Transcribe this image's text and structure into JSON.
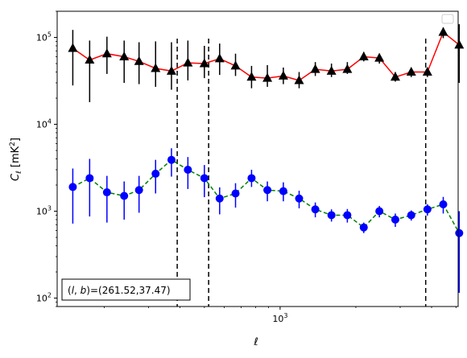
{
  "chart_data": {
    "type": "scatter",
    "xlabel": "ℓ",
    "ylabel": "C_ℓ  [mK²]",
    "xscale": "log",
    "yscale": "log",
    "xlim": [
      130,
      5100
    ],
    "ylim": [
      80,
      200000
    ],
    "x_ticks": [
      {
        "value": 1000,
        "label": "10",
        "sup": "3"
      }
    ],
    "y_ticks": [
      {
        "value": 100,
        "label": "10",
        "sup": "2"
      },
      {
        "value": 1000,
        "label": "10",
        "sup": "3"
      },
      {
        "value": 10000,
        "label": "10",
        "sup": "4"
      },
      {
        "value": 100000,
        "label": "10",
        "sup": "5"
      }
    ],
    "grid": false,
    "legend": "top-right (empty)",
    "vlines": [
      390,
      520,
      3790
    ],
    "annotation": {
      "prefix": "(l, b)",
      "value": "=(261.52,37.47)"
    },
    "colors": {
      "series1_line": "#ff0000",
      "series1_marker": "#000000",
      "series2_line": "#008000",
      "series2_marker": "#0000ff"
    },
    "series": [
      {
        "marker": "triangle",
        "line": "solid",
        "x": [
          150,
          175,
          205,
          240,
          275,
          320,
          370,
          430,
          500,
          575,
          665,
          770,
          890,
          1030,
          1190,
          1380,
          1600,
          1850,
          2150,
          2480,
          2870,
          3320,
          3850,
          4450,
          5150
        ],
        "y": [
          75000,
          55000,
          65000,
          60000,
          53000,
          44000,
          41000,
          51000,
          50000,
          57000,
          47000,
          35000,
          34000,
          36000,
          32000,
          43000,
          41000,
          43000,
          60000,
          58000,
          35000,
          40000,
          40000,
          115000,
          82000
        ],
        "err_low": [
          28000,
          18000,
          38000,
          30000,
          29000,
          27000,
          25000,
          32000,
          34000,
          37000,
          36000,
          26000,
          27000,
          29000,
          26000,
          36000,
          35000,
          38000,
          53000,
          50000,
          31000,
          35000,
          35000,
          98000,
          30000
        ],
        "err_high": [
          122000,
          92000,
          102000,
          92000,
          88000,
          90000,
          88000,
          92000,
          80000,
          85000,
          65000,
          47000,
          48000,
          45000,
          40000,
          52000,
          50000,
          52000,
          68000,
          65000,
          40000,
          45000,
          45000,
          130000,
          142000
        ]
      },
      {
        "marker": "circle",
        "line": "dashed",
        "x": [
          150,
          175,
          205,
          240,
          275,
          320,
          370,
          430,
          500,
          575,
          665,
          770,
          890,
          1030,
          1190,
          1380,
          1600,
          1850,
          2150,
          2480,
          2870,
          3320,
          3850,
          4450,
          5150
        ],
        "y": [
          1900,
          2400,
          1650,
          1500,
          1750,
          2700,
          3900,
          3000,
          2400,
          1400,
          1600,
          2400,
          1750,
          1700,
          1400,
          1050,
          900,
          900,
          650,
          1000,
          800,
          900,
          1050,
          1200,
          560
        ],
        "err_low": [
          720,
          870,
          740,
          800,
          960,
          1600,
          2500,
          1800,
          1450,
          920,
          1100,
          1900,
          1300,
          1300,
          1080,
          850,
          760,
          740,
          560,
          850,
          660,
          780,
          890,
          940,
          115
        ],
        "err_high": [
          3100,
          4000,
          2550,
          2200,
          2550,
          3900,
          5300,
          4200,
          3400,
          1880,
          2100,
          3000,
          2200,
          2150,
          1720,
          1260,
          1050,
          1060,
          740,
          1150,
          940,
          1020,
          1200,
          1460,
          1000
        ]
      }
    ]
  }
}
